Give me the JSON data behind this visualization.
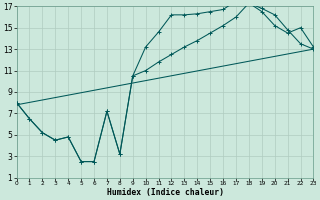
{
  "xlabel": "Humidex (Indice chaleur)",
  "bg_color": "#cce8dc",
  "grid_color": "#b0ccc0",
  "line_color": "#005858",
  "xlim": [
    0,
    23
  ],
  "ylim": [
    1,
    17
  ],
  "xticks": [
    0,
    1,
    2,
    3,
    4,
    5,
    6,
    7,
    8,
    9,
    10,
    11,
    12,
    13,
    14,
    15,
    16,
    17,
    18,
    19,
    20,
    21,
    22,
    23
  ],
  "yticks": [
    1,
    3,
    5,
    7,
    9,
    11,
    13,
    15,
    17
  ],
  "line1_x": [
    0,
    1,
    2,
    3,
    4,
    5,
    6,
    7,
    8,
    9,
    10,
    11,
    12,
    13,
    14,
    15,
    16,
    17,
    18,
    19,
    20,
    21,
    22,
    23
  ],
  "line1_y": [
    8.0,
    6.5,
    5.2,
    4.5,
    4.8,
    2.5,
    2.5,
    7.2,
    3.2,
    10.5,
    13.2,
    14.6,
    16.2,
    16.2,
    16.3,
    16.5,
    16.7,
    17.5,
    17.3,
    16.5,
    15.2,
    14.5,
    15.0,
    13.2
  ],
  "line2_x": [
    0,
    1,
    2,
    3,
    4,
    5,
    6,
    7,
    8,
    9,
    10,
    11,
    12,
    13,
    14,
    15,
    16,
    17,
    18,
    19,
    20,
    21,
    22,
    23
  ],
  "line2_y": [
    8.0,
    6.5,
    5.2,
    4.5,
    4.8,
    2.5,
    2.5,
    7.2,
    3.2,
    10.5,
    11.0,
    11.8,
    12.5,
    13.2,
    13.8,
    14.5,
    15.2,
    16.0,
    17.3,
    16.8,
    16.2,
    14.8,
    13.5,
    13.0
  ],
  "line3_x": [
    0,
    23
  ],
  "line3_y": [
    7.8,
    13.0
  ]
}
